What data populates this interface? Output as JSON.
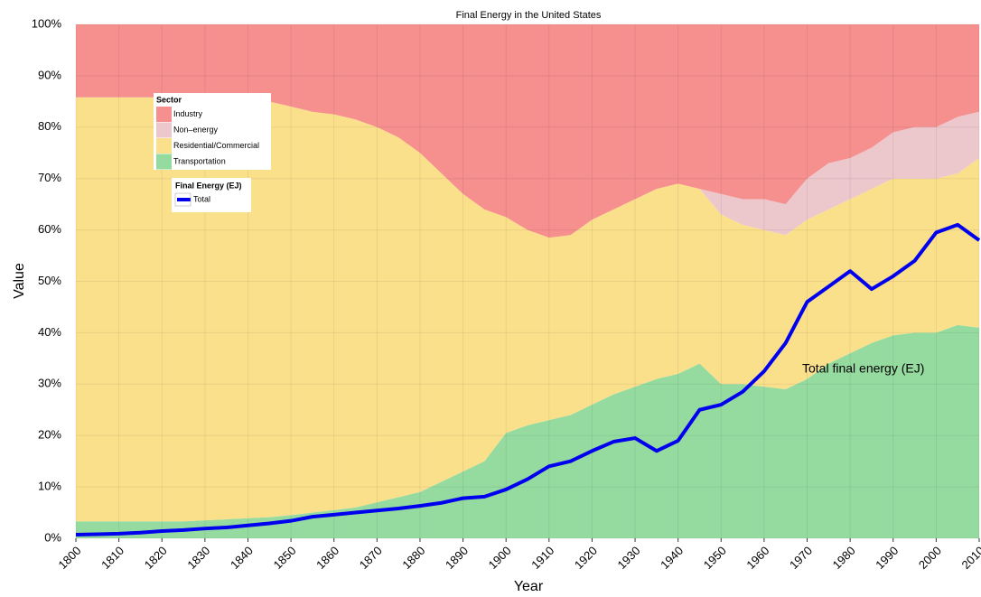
{
  "chart_data": {
    "type": "stacked-area",
    "title": "Final Energy in the United States",
    "x_label": "Year",
    "y_label": "Value",
    "annotation": "Total final energy (EJ)",
    "legend_title": "Sector",
    "line_legend_title": "Final Energy (EJ)",
    "x": [
      1800,
      1805,
      1810,
      1815,
      1820,
      1825,
      1830,
      1835,
      1840,
      1845,
      1850,
      1855,
      1860,
      1865,
      1870,
      1875,
      1880,
      1885,
      1890,
      1895,
      1900,
      1905,
      1910,
      1915,
      1920,
      1925,
      1930,
      1935,
      1940,
      1945,
      1950,
      1955,
      1960,
      1965,
      1970,
      1975,
      1980,
      1985,
      1990,
      1995,
      2000,
      2005,
      2010
    ],
    "series": [
      {
        "name": "Industry",
        "color": "#f5908e",
        "values": [
          14.2,
          14.2,
          14.2,
          14.2,
          14.2,
          14.2,
          14.2,
          14.2,
          14.2,
          15,
          16,
          17,
          17.5,
          18.5,
          20,
          22,
          25,
          29,
          33,
          36,
          37.5,
          40,
          41.5,
          41,
          38,
          36,
          34,
          32,
          31,
          32,
          33,
          34,
          34,
          35,
          30,
          27,
          26,
          24,
          21,
          20,
          20,
          18,
          17
        ]
      },
      {
        "name": "Non–energy",
        "color": "#ecc8cd",
        "values": [
          0,
          0,
          0,
          0,
          0,
          0,
          0,
          0,
          0,
          0,
          0,
          0,
          0,
          0,
          0,
          0,
          0,
          0,
          0,
          0,
          0,
          0,
          0,
          0,
          0,
          0,
          0,
          0,
          0,
          0,
          4,
          5,
          6,
          6,
          8,
          9,
          8,
          8,
          9,
          10,
          10,
          11,
          9
        ]
      },
      {
        "name": "Residential/Commercial",
        "color": "#fbe08c",
        "values": [
          82.5,
          82.5,
          82.5,
          82.5,
          82.5,
          82.5,
          82.3,
          82.1,
          81.9,
          80.9,
          79.5,
          78,
          77,
          75.5,
          73,
          70,
          66,
          60,
          54,
          49,
          42,
          38,
          35.5,
          35,
          36,
          36,
          36.5,
          37,
          37,
          34,
          33,
          31,
          30.5,
          30,
          31,
          30,
          30,
          30,
          30.5,
          30,
          30,
          29.5,
          33
        ]
      },
      {
        "name": "Transportation",
        "color": "#95dba0",
        "values": [
          3.3,
          3.3,
          3.3,
          3.3,
          3.3,
          3.3,
          3.5,
          3.7,
          3.9,
          4.1,
          4.5,
          5,
          5.5,
          6,
          7,
          8,
          9,
          11,
          13,
          15,
          20.5,
          22,
          23,
          24,
          26,
          28,
          29.5,
          31,
          32,
          34,
          30,
          30,
          29.5,
          29,
          31,
          34,
          36,
          38,
          39.5,
          40,
          40,
          41.5,
          41
        ]
      }
    ],
    "line_series": {
      "name": "Total",
      "color": "#0000ee",
      "values": [
        0.7,
        0.8,
        0.9,
        1.1,
        1.4,
        1.6,
        1.9,
        2.1,
        2.5,
        2.9,
        3.4,
        4.2,
        4.6,
        5,
        5.4,
        5.8,
        6.3,
        6.9,
        7.8,
        8.1,
        9.5,
        11.5,
        14,
        15,
        17,
        18.8,
        19.5,
        17,
        19,
        25,
        26,
        28.5,
        32.5,
        38,
        46,
        49,
        52,
        48.5,
        51,
        54,
        59.5,
        61,
        58
      ]
    },
    "xlim": [
      1800,
      2010
    ],
    "xticks": [
      1800,
      1810,
      1820,
      1830,
      1840,
      1850,
      1860,
      1870,
      1880,
      1890,
      1900,
      1910,
      1920,
      1930,
      1940,
      1950,
      1960,
      1970,
      1980,
      1990,
      2000,
      2010
    ],
    "ylim": [
      0,
      100
    ],
    "yticks": [
      {
        "value": 0,
        "label": "0%"
      },
      {
        "value": 10,
        "label": "10%"
      },
      {
        "value": 20,
        "label": "20%"
      },
      {
        "value": 30,
        "label": "30%"
      },
      {
        "value": 40,
        "label": "40%"
      },
      {
        "value": 50,
        "label": "50%"
      },
      {
        "value": 60,
        "label": "60%"
      },
      {
        "value": 70,
        "label": "70%"
      },
      {
        "value": 80,
        "label": "80%"
      },
      {
        "value": 90,
        "label": "90%"
      },
      {
        "value": 100,
        "label": "100%"
      }
    ],
    "grid": true
  }
}
